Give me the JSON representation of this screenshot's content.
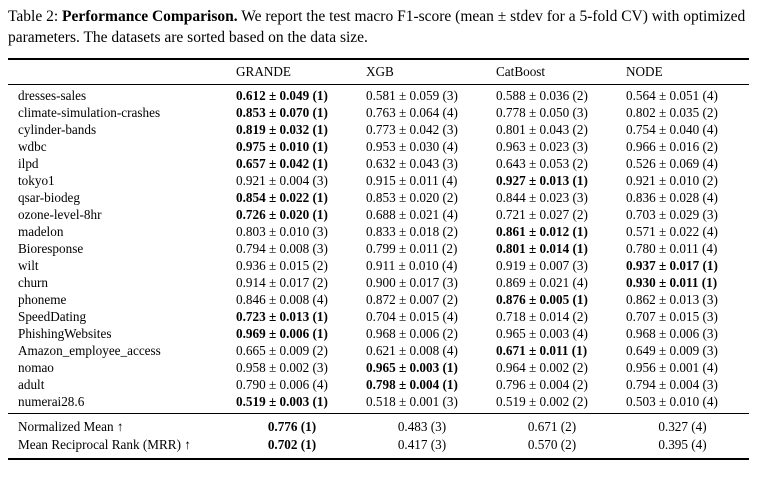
{
  "caption": {
    "prefix": "Table 2: ",
    "bold_title": "Performance Comparison.",
    "rest": " We report the test macro F1-score (mean ± stdev for a 5-fold CV) with optimized parameters. The datasets are sorted based on the data size."
  },
  "table": {
    "columns": [
      "",
      "GRANDE",
      "XGB",
      "CatBoost",
      "NODE"
    ],
    "rows": [
      {
        "dataset": "dresses-sales",
        "values": [
          {
            "text": "0.612 ± 0.049 (1)",
            "bold": true
          },
          {
            "text": "0.581 ± 0.059 (3)",
            "bold": false
          },
          {
            "text": "0.588 ± 0.036 (2)",
            "bold": false
          },
          {
            "text": "0.564 ± 0.051 (4)",
            "bold": false
          }
        ]
      },
      {
        "dataset": "climate-simulation-crashes",
        "values": [
          {
            "text": "0.853 ± 0.070 (1)",
            "bold": true
          },
          {
            "text": "0.763 ± 0.064 (4)",
            "bold": false
          },
          {
            "text": "0.778 ± 0.050 (3)",
            "bold": false
          },
          {
            "text": "0.802 ± 0.035 (2)",
            "bold": false
          }
        ]
      },
      {
        "dataset": "cylinder-bands",
        "values": [
          {
            "text": "0.819 ± 0.032 (1)",
            "bold": true
          },
          {
            "text": "0.773 ± 0.042 (3)",
            "bold": false
          },
          {
            "text": "0.801 ± 0.043 (2)",
            "bold": false
          },
          {
            "text": "0.754 ± 0.040 (4)",
            "bold": false
          }
        ]
      },
      {
        "dataset": "wdbc",
        "values": [
          {
            "text": "0.975 ± 0.010 (1)",
            "bold": true
          },
          {
            "text": "0.953 ± 0.030 (4)",
            "bold": false
          },
          {
            "text": "0.963 ± 0.023 (3)",
            "bold": false
          },
          {
            "text": "0.966 ± 0.016 (2)",
            "bold": false
          }
        ]
      },
      {
        "dataset": "ilpd",
        "values": [
          {
            "text": "0.657 ± 0.042 (1)",
            "bold": true
          },
          {
            "text": "0.632 ± 0.043 (3)",
            "bold": false
          },
          {
            "text": "0.643 ± 0.053 (2)",
            "bold": false
          },
          {
            "text": "0.526 ± 0.069 (4)",
            "bold": false
          }
        ]
      },
      {
        "dataset": "tokyo1",
        "values": [
          {
            "text": "0.921 ± 0.004 (3)",
            "bold": false
          },
          {
            "text": "0.915 ± 0.011 (4)",
            "bold": false
          },
          {
            "text": "0.927 ± 0.013 (1)",
            "bold": true
          },
          {
            "text": "0.921 ± 0.010 (2)",
            "bold": false
          }
        ]
      },
      {
        "dataset": "qsar-biodeg",
        "values": [
          {
            "text": "0.854 ± 0.022 (1)",
            "bold": true
          },
          {
            "text": "0.853 ± 0.020 (2)",
            "bold": false
          },
          {
            "text": "0.844 ± 0.023 (3)",
            "bold": false
          },
          {
            "text": "0.836 ± 0.028 (4)",
            "bold": false
          }
        ]
      },
      {
        "dataset": "ozone-level-8hr",
        "values": [
          {
            "text": "0.726 ± 0.020 (1)",
            "bold": true
          },
          {
            "text": "0.688 ± 0.021 (4)",
            "bold": false
          },
          {
            "text": "0.721 ± 0.027 (2)",
            "bold": false
          },
          {
            "text": "0.703 ± 0.029 (3)",
            "bold": false
          }
        ]
      },
      {
        "dataset": "madelon",
        "values": [
          {
            "text": "0.803 ± 0.010 (3)",
            "bold": false
          },
          {
            "text": "0.833 ± 0.018 (2)",
            "bold": false
          },
          {
            "text": "0.861 ± 0.012 (1)",
            "bold": true
          },
          {
            "text": "0.571 ± 0.022 (4)",
            "bold": false
          }
        ]
      },
      {
        "dataset": "Bioresponse",
        "values": [
          {
            "text": "0.794 ± 0.008 (3)",
            "bold": false
          },
          {
            "text": "0.799 ± 0.011 (2)",
            "bold": false
          },
          {
            "text": "0.801 ± 0.014 (1)",
            "bold": true
          },
          {
            "text": "0.780 ± 0.011 (4)",
            "bold": false
          }
        ]
      },
      {
        "dataset": "wilt",
        "values": [
          {
            "text": "0.936 ± 0.015 (2)",
            "bold": false
          },
          {
            "text": "0.911 ± 0.010 (4)",
            "bold": false
          },
          {
            "text": "0.919 ± 0.007 (3)",
            "bold": false
          },
          {
            "text": "0.937 ± 0.017 (1)",
            "bold": true
          }
        ]
      },
      {
        "dataset": "churn",
        "values": [
          {
            "text": "0.914 ± 0.017 (2)",
            "bold": false
          },
          {
            "text": "0.900 ± 0.017 (3)",
            "bold": false
          },
          {
            "text": "0.869 ± 0.021 (4)",
            "bold": false
          },
          {
            "text": "0.930 ± 0.011 (1)",
            "bold": true
          }
        ]
      },
      {
        "dataset": "phoneme",
        "values": [
          {
            "text": "0.846 ± 0.008 (4)",
            "bold": false
          },
          {
            "text": "0.872 ± 0.007 (2)",
            "bold": false
          },
          {
            "text": "0.876 ± 0.005 (1)",
            "bold": true
          },
          {
            "text": "0.862 ± 0.013 (3)",
            "bold": false
          }
        ]
      },
      {
        "dataset": "SpeedDating",
        "values": [
          {
            "text": "0.723 ± 0.013 (1)",
            "bold": true
          },
          {
            "text": "0.704 ± 0.015 (4)",
            "bold": false
          },
          {
            "text": "0.718 ± 0.014 (2)",
            "bold": false
          },
          {
            "text": "0.707 ± 0.015 (3)",
            "bold": false
          }
        ]
      },
      {
        "dataset": "PhishingWebsites",
        "values": [
          {
            "text": "0.969 ± 0.006 (1)",
            "bold": true
          },
          {
            "text": "0.968 ± 0.006 (2)",
            "bold": false
          },
          {
            "text": "0.965 ± 0.003 (4)",
            "bold": false
          },
          {
            "text": "0.968 ± 0.006 (3)",
            "bold": false
          }
        ]
      },
      {
        "dataset": "Amazon_employee_access",
        "values": [
          {
            "text": "0.665 ± 0.009 (2)",
            "bold": false
          },
          {
            "text": "0.621 ± 0.008 (4)",
            "bold": false
          },
          {
            "text": "0.671 ± 0.011 (1)",
            "bold": true
          },
          {
            "text": "0.649 ± 0.009 (3)",
            "bold": false
          }
        ]
      },
      {
        "dataset": "nomao",
        "values": [
          {
            "text": "0.958 ± 0.002 (3)",
            "bold": false
          },
          {
            "text": "0.965 ± 0.003 (1)",
            "bold": true
          },
          {
            "text": "0.964 ± 0.002 (2)",
            "bold": false
          },
          {
            "text": "0.956 ± 0.001 (4)",
            "bold": false
          }
        ]
      },
      {
        "dataset": "adult",
        "values": [
          {
            "text": "0.790 ± 0.006 (4)",
            "bold": false
          },
          {
            "text": "0.798 ± 0.004 (1)",
            "bold": true
          },
          {
            "text": "0.796 ± 0.004 (2)",
            "bold": false
          },
          {
            "text": "0.794 ± 0.004 (3)",
            "bold": false
          }
        ]
      },
      {
        "dataset": "numerai28.6",
        "values": [
          {
            "text": "0.519 ± 0.003 (1)",
            "bold": true
          },
          {
            "text": "0.518 ± 0.001 (3)",
            "bold": false
          },
          {
            "text": "0.519 ± 0.002 (2)",
            "bold": false
          },
          {
            "text": "0.503 ± 0.010 (4)",
            "bold": false
          }
        ]
      }
    ],
    "footer": [
      {
        "label": "Normalized Mean ↑",
        "values": [
          {
            "text": "0.776 (1)",
            "bold": true
          },
          {
            "text": "0.483 (3)",
            "bold": false
          },
          {
            "text": "0.671 (2)",
            "bold": false
          },
          {
            "text": "0.327 (4)",
            "bold": false
          }
        ]
      },
      {
        "label": "Mean Reciprocal Rank (MRR) ↑",
        "values": [
          {
            "text": "0.702 (1)",
            "bold": true
          },
          {
            "text": "0.417 (3)",
            "bold": false
          },
          {
            "text": "0.570 (2)",
            "bold": false
          },
          {
            "text": "0.395 (4)",
            "bold": false
          }
        ]
      }
    ]
  }
}
